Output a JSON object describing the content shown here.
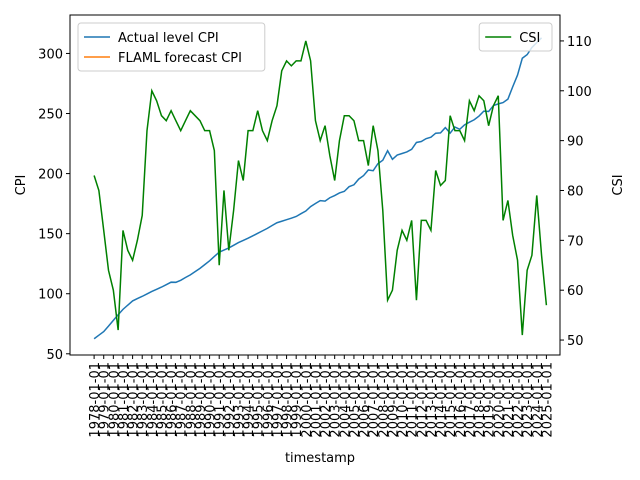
{
  "chart_data": {
    "type": "line",
    "x_label": "timestamp",
    "y_label": "CPI",
    "y2_label": "CSI",
    "x": [
      "1978-01-01",
      "1978-07-01",
      "1979-01-01",
      "1979-07-01",
      "1980-01-01",
      "1980-07-01",
      "1981-01-01",
      "1981-07-01",
      "1982-01-01",
      "1982-07-01",
      "1983-01-01",
      "1983-07-01",
      "1984-01-01",
      "1984-07-01",
      "1985-01-01",
      "1985-07-01",
      "1986-01-01",
      "1986-07-01",
      "1987-01-01",
      "1987-07-01",
      "1988-01-01",
      "1988-07-01",
      "1989-01-01",
      "1989-07-01",
      "1990-01-01",
      "1990-07-01",
      "1991-01-01",
      "1991-07-01",
      "1992-01-01",
      "1992-07-01",
      "1993-01-01",
      "1993-07-01",
      "1994-01-01",
      "1994-07-01",
      "1995-01-01",
      "1995-07-01",
      "1996-01-01",
      "1996-07-01",
      "1997-01-01",
      "1997-07-01",
      "1998-01-01",
      "1998-07-01",
      "1999-01-01",
      "1999-07-01",
      "2000-01-01",
      "2000-07-01",
      "2001-01-01",
      "2001-07-01",
      "2002-01-01",
      "2002-07-01",
      "2003-01-01",
      "2003-07-01",
      "2004-01-01",
      "2004-07-01",
      "2005-01-01",
      "2005-07-01",
      "2006-01-01",
      "2006-07-01",
      "2007-01-01",
      "2007-07-01",
      "2008-01-01",
      "2008-07-01",
      "2009-01-01",
      "2009-07-01",
      "2010-01-01",
      "2010-07-01",
      "2011-01-01",
      "2011-07-01",
      "2012-01-01",
      "2012-07-01",
      "2013-01-01",
      "2013-07-01",
      "2014-01-01",
      "2014-07-01",
      "2015-01-01",
      "2015-07-01",
      "2016-01-01",
      "2016-07-01",
      "2017-01-01",
      "2017-07-01",
      "2018-01-01",
      "2018-07-01",
      "2019-01-01",
      "2019-07-01",
      "2020-01-01",
      "2020-07-01",
      "2021-01-01",
      "2021-07-01",
      "2022-01-01",
      "2022-07-01",
      "2023-01-01",
      "2023-07-01",
      "2024-01-01",
      "2024-07-01",
      "2025-01-01"
    ],
    "series": [
      {
        "name": "Actual level CPI",
        "color": "#1f77b4",
        "axis": "y",
        "values": [
          62.5,
          65.5,
          68.5,
          73,
          77.8,
          82.5,
          87,
          90.5,
          94,
          96,
          97.8,
          99.8,
          101.9,
          103.7,
          105.5,
          107.5,
          109.6,
          109.5,
          111.2,
          113.5,
          115.7,
          118.4,
          121.1,
          124.2,
          127.4,
          131,
          134.6,
          136.3,
          138.1,
          140.3,
          142.6,
          144.4,
          146.2,
          148.2,
          150.3,
          152.3,
          154.4,
          156.8,
          159.1,
          160.3,
          161.6,
          162.9,
          164.3,
          166.6,
          168.8,
          172.5,
          175.1,
          177.5,
          177.1,
          179.9,
          181.7,
          183.9,
          185.2,
          189.1,
          190.7,
          195.4,
          198.3,
          203,
          202.4,
          208.3,
          211.1,
          219,
          211.9,
          215.4,
          216.7,
          218,
          220.2,
          225.9,
          226.7,
          229.1,
          230.3,
          233.6,
          233.9,
          238.3,
          233.7,
          238.7,
          236.9,
          240.6,
          242.8,
          244.8,
          247.9,
          252,
          251.7,
          256.6,
          258,
          259.1,
          262,
          272.2,
          282,
          296,
          299,
          305,
          309,
          313,
          null
        ]
      },
      {
        "name": "FLAML forecast CPI",
        "color": "#ff7f0e",
        "axis": "y",
        "values": [
          null,
          null,
          null,
          null,
          null,
          null,
          null,
          null,
          null,
          null,
          null,
          null,
          null,
          null,
          null,
          null,
          null,
          null,
          null,
          null,
          null,
          null,
          null,
          null,
          null,
          null,
          null,
          null,
          null,
          null,
          null,
          null,
          null,
          null,
          null,
          null,
          null,
          null,
          null,
          null,
          null,
          null,
          null,
          null,
          null,
          null,
          null,
          null,
          null,
          null,
          null,
          null,
          null,
          null,
          null,
          null,
          null,
          null,
          null,
          null,
          null,
          null,
          null,
          null,
          null,
          null,
          null,
          null,
          null,
          null,
          null,
          null,
          null,
          null,
          null,
          null,
          null,
          null,
          null,
          null,
          null,
          null,
          null,
          null,
          null,
          null,
          null,
          null,
          null,
          null,
          null,
          null,
          null,
          null,
          null
        ]
      },
      {
        "name": "CSI",
        "color": "#008000",
        "axis": "y2",
        "values": [
          83,
          80,
          72,
          64,
          60,
          52,
          72,
          68,
          66,
          70,
          75,
          92,
          100,
          98,
          95,
          94,
          96,
          94,
          92,
          94,
          96,
          95,
          94,
          92,
          92,
          88,
          65,
          80,
          68,
          76,
          86,
          82,
          92,
          92,
          96,
          92,
          90,
          94,
          97,
          104,
          106,
          105,
          106,
          106,
          110,
          106,
          94,
          90,
          93,
          87,
          82,
          90,
          95,
          95,
          94,
          90,
          90,
          85,
          93,
          88,
          76,
          58,
          60,
          68,
          72,
          70,
          74,
          58,
          74,
          74,
          72,
          84,
          81,
          82,
          95,
          92,
          92,
          90,
          98,
          96,
          99,
          98,
          93,
          97,
          99,
          74,
          78,
          71,
          66,
          51,
          64,
          67,
          79,
          67,
          57
        ]
      }
    ],
    "xlim": [
      "1975-07-01",
      "2026-06-01"
    ],
    "xticks": [
      "1978-01-01",
      "1979-01-01",
      "1980-01-01",
      "1981-01-01",
      "1982-01-01",
      "1983-01-01",
      "1984-01-01",
      "1985-01-01",
      "1986-01-01",
      "1987-01-01",
      "1988-01-01",
      "1989-01-01",
      "1990-01-01",
      "1991-01-01",
      "1992-01-01",
      "1993-01-01",
      "1994-01-01",
      "1995-01-01",
      "1996-01-01",
      "1997-01-01",
      "1998-01-01",
      "1999-01-01",
      "2000-01-01",
      "2001-01-01",
      "2002-01-01",
      "2003-01-01",
      "2004-01-01",
      "2005-01-01",
      "2006-01-01",
      "2007-01-01",
      "2008-01-01",
      "2009-01-01",
      "2010-01-01",
      "2011-01-01",
      "2012-01-01",
      "2013-01-01",
      "2014-01-01",
      "2015-01-01",
      "2016-01-01",
      "2017-01-01",
      "2018-01-01",
      "2019-01-01",
      "2020-01-01",
      "2021-01-01",
      "2022-01-01",
      "2023-01-01",
      "2024-01-01",
      "2025-01-01"
    ],
    "ylim": [
      49,
      332
    ],
    "yticks": [
      50,
      100,
      150,
      200,
      250,
      300
    ],
    "y2lim": [
      47,
      115.2
    ],
    "y2ticks": [
      50,
      60,
      70,
      80,
      90,
      100,
      110
    ],
    "legend": "upper left",
    "legend2": "upper right",
    "grid": false
  }
}
